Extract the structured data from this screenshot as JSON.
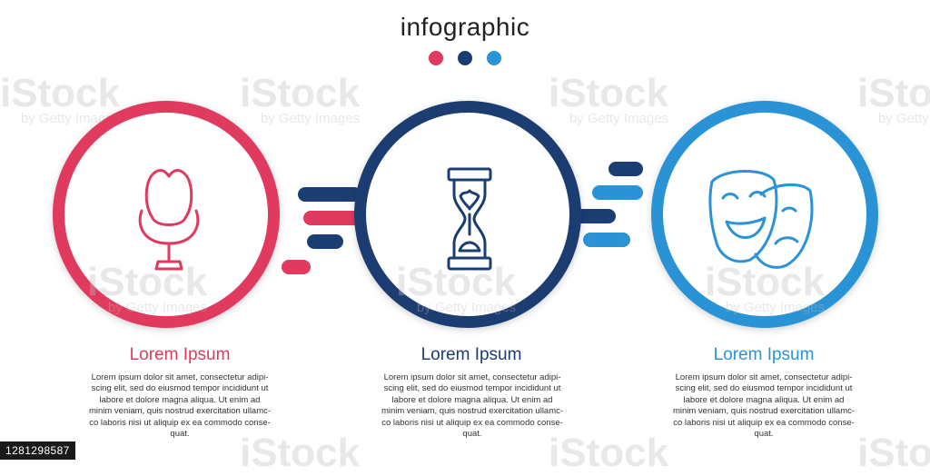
{
  "header": {
    "title": "infographic"
  },
  "colors": {
    "red": "#e03a5e",
    "navy": "#1b3e72",
    "blue": "#2a93d5"
  },
  "dots": [
    {
      "color": "#e03a5e"
    },
    {
      "color": "#1b3e72"
    },
    {
      "color": "#2a93d5"
    }
  ],
  "watermark": {
    "brand": "iStock",
    "sub": "by Getty Images"
  },
  "steps": [
    {
      "icon": "armchair-icon",
      "title": "Lorem Ipsum",
      "color": "#e03a5e",
      "lines": [
        "Lorem ipsum dolor sit amet, consectetur adipi-",
        "scing elit, sed do eiusmod tempor incididunt ut",
        "labore et dolore magna aliqua. Ut enim ad",
        "minim veniam, quis nostrud exercitation ullamc-",
        "co laboris nisi ut aliquip ex ea commodo conse-",
        "quat."
      ]
    },
    {
      "icon": "hourglass-icon",
      "title": "Lorem Ipsum",
      "color": "#1b3e72",
      "lines": [
        "Lorem ipsum dolor sit amet, consectetur adipi-",
        "scing elit, sed do eiusmod tempor incididunt ut",
        "labore et dolore magna aliqua. Ut enim ad",
        "minim veniam, quis nostrud exercitation ullamc-",
        "co laboris nisi ut aliquip ex ea commodo conse-",
        "quat."
      ]
    },
    {
      "icon": "theater-masks-icon",
      "title": "Lorem Ipsum",
      "color": "#2a93d5",
      "lines": [
        "Lorem ipsum dolor sit amet, consectetur adipi-",
        "scing elit, sed do eiusmod tempor incididunt ut",
        "labore et dolore magna aliqua. Ut enim ad",
        "minim veniam, quis nostrud exercitation ullamc-",
        "co laboris nisi ut aliquip ex ea commodo conse-",
        "quat."
      ]
    }
  ],
  "stock_id": "1281298587"
}
